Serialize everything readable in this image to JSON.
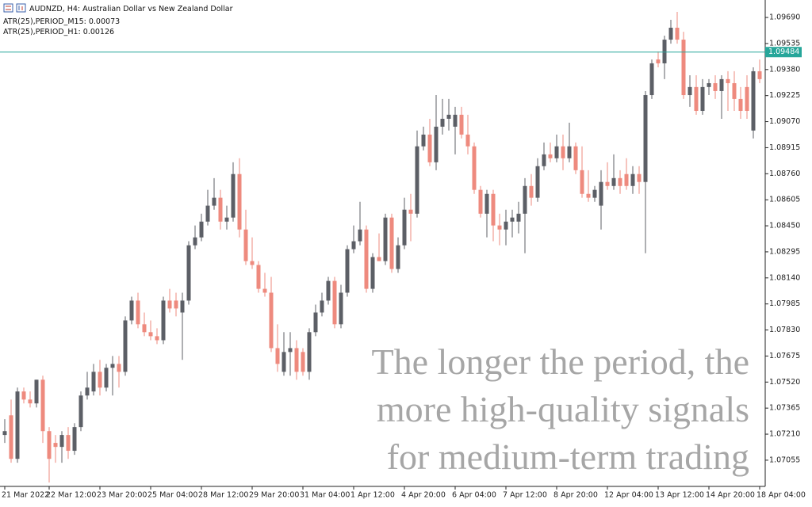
{
  "header": {
    "symbol": "AUDNZD, H4:  Australian Dollar vs New Zealand Dollar",
    "indicators": [
      "ATR(25),PERIOD_M15: 0.00073",
      "ATR(25),PERIOD_H1: 0.00126"
    ]
  },
  "overlay": {
    "lines": [
      "The longer the period, the",
      "more high-quality signals",
      "for medium-term trading"
    ]
  },
  "chart_data": {
    "type": "candlestick",
    "up_color": "#5c5f66",
    "down_color": "#ee8a7e",
    "grid": false,
    "ylim": [
      1.06899,
      1.09794
    ],
    "yticks": [
      {
        "value": 1.0969,
        "label": "1.09690"
      },
      1.09535,
      {
        "value": 1.0938,
        "label": "1.09380"
      },
      1.09225,
      {
        "value": 1.0907,
        "label": "1.09070"
      },
      1.08915,
      {
        "value": 1.0876,
        "label": "1.08760"
      },
      1.08605,
      {
        "value": 1.0845,
        "label": "1.08450"
      },
      1.08295,
      {
        "value": 1.0814,
        "label": "1.08140"
      },
      1.07985,
      {
        "value": 1.0783,
        "label": "1.07830"
      },
      1.07675,
      {
        "value": 1.0752,
        "label": "1.07520"
      },
      1.07365,
      {
        "value": 1.0721,
        "label": "1.07210"
      },
      1.07055
    ],
    "price_line": {
      "value": 1.09484,
      "color": "#26a69a"
    },
    "categories": [
      "21 Mar 2022",
      null,
      null,
      null,
      null,
      null,
      null,
      "22 Mar 12:00",
      null,
      null,
      null,
      null,
      null,
      null,
      null,
      "23 Mar 20:00",
      null,
      null,
      null,
      null,
      null,
      null,
      null,
      "25 Mar 04:00",
      null,
      null,
      null,
      null,
      null,
      null,
      null,
      "28 Mar 12:00",
      null,
      null,
      null,
      null,
      null,
      null,
      null,
      "29 Mar 20:00",
      null,
      null,
      null,
      null,
      null,
      null,
      null,
      "31 Mar 04:00",
      null,
      null,
      null,
      null,
      null,
      null,
      null,
      "1 Apr 12:00",
      null,
      null,
      null,
      null,
      null,
      null,
      null,
      "4 Apr 20:00",
      null,
      null,
      null,
      null,
      null,
      null,
      null,
      "6 Apr 04:00",
      null,
      null,
      null,
      null,
      null,
      null,
      null,
      "7 Apr 12:00",
      null,
      null,
      null,
      null,
      null,
      null,
      null,
      "8 Apr 20:00",
      null,
      null,
      null,
      null,
      null,
      null,
      null,
      "12 Apr 04:00",
      null,
      null,
      null,
      null,
      null,
      null,
      null,
      "13 Apr 12:00",
      null,
      null,
      null,
      null,
      null,
      null,
      null,
      "14 Apr 20:00",
      null,
      null,
      null,
      null,
      null,
      null,
      null,
      "18 Apr 04:00"
    ],
    "open": [
      1.07205,
      1.07322,
      1.07063,
      1.07464,
      1.07416,
      1.07393,
      1.07534,
      1.07228,
      1.07158,
      1.07134,
      1.07205,
      1.07111,
      1.07252,
      1.0744,
      1.07464,
      1.07581,
      1.07487,
      1.07605,
      1.07628,
      1.07581,
      1.07887,
      1.08005,
      1.07864,
      1.07817,
      1.07793,
      1.07769,
      1.08005,
      1.08005,
      1.07934,
      1.08005,
      1.08334,
      1.08381,
      1.08475,
      1.0857,
      1.08617,
      1.08475,
      1.08499,
      1.08758,
      1.08428,
      1.0824,
      1.08217,
      1.08075,
      1.08052,
      1.07722,
      1.07581,
      1.07699,
      1.07722,
      1.07699,
      1.07581,
      1.07817,
      1.07934,
      1.08005,
      1.08122,
      1.07864,
      1.08052,
      1.08311,
      1.08358,
      1.08428,
      1.08075,
      1.08264,
      1.0824,
      1.08499,
      1.08193,
      1.08334,
      1.08546,
      1.08522,
      1.08923,
      1.08993,
      1.08828,
      1.0904,
      1.09087,
      1.0904,
      1.09111,
      1.08993,
      1.08923,
      1.08664,
      1.08522,
      1.0864,
      1.08452,
      1.08428,
      1.08475,
      1.08475,
      1.08522,
      1.08687,
      1.08617,
      1.08805,
      1.08875,
      1.08852,
      1.08923,
      1.08852,
      1.08923,
      1.08781,
      1.0864,
      1.08617,
      1.0857,
      1.08711,
      1.08687,
      1.08734,
      1.08758,
      1.08687,
      1.08758,
      1.08711,
      1.09228,
      1.0944,
      1.09417,
      1.09558,
      1.09629,
      1.09558,
      1.09228,
      1.09276,
      1.09134,
      1.09276,
      1.09299,
      1.09252,
      1.09323,
      1.09299,
      1.09205,
      1.09276,
      1.09017,
      1.0937
    ],
    "high": [
      1.07299,
      1.07416,
      1.07487,
      1.07487,
      1.07464,
      1.07534,
      1.07558,
      1.07252,
      1.07205,
      1.07228,
      1.07252,
      1.07275,
      1.07464,
      1.07581,
      1.07628,
      1.07652,
      1.07628,
      1.07675,
      1.07675,
      1.07911,
      1.08028,
      1.08052,
      1.07934,
      1.07887,
      1.0784,
      1.08028,
      1.08075,
      1.08052,
      1.08052,
      1.08358,
      1.08452,
      1.08522,
      1.08664,
      1.08734,
      1.08664,
      1.0857,
      1.08828,
      1.08852,
      1.08546,
      1.08381,
      1.0824,
      1.0817,
      1.08146,
      1.07864,
      1.07817,
      1.07817,
      1.07769,
      1.07722,
      1.0784,
      1.07981,
      1.08052,
      1.08146,
      1.08146,
      1.08099,
      1.08334,
      1.08452,
      1.08593,
      1.08452,
      1.08287,
      1.08405,
      1.08522,
      1.08522,
      1.08381,
      1.08617,
      1.0864,
      1.09017,
      1.0904,
      1.09087,
      1.09228,
      1.09205,
      1.09205,
      1.09158,
      1.09158,
      1.09111,
      1.08946,
      1.08687,
      1.08664,
      1.08664,
      1.08522,
      1.08546,
      1.08546,
      1.08593,
      1.08734,
      1.08758,
      1.08852,
      1.08946,
      1.08946,
      1.08993,
      1.08993,
      1.09064,
      1.08946,
      1.08923,
      1.08781,
      1.08687,
      1.08781,
      1.08828,
      1.08875,
      1.08781,
      1.08852,
      1.08805,
      1.08805,
      1.09252,
      1.0944,
      1.09487,
      1.09582,
      1.09676,
      1.09723,
      1.09605,
      1.09346,
      1.09346,
      1.09323,
      1.09323,
      1.09346,
      1.09346,
      1.0937,
      1.0937,
      1.09276,
      1.09346,
      1.09393,
      1.0944
    ],
    "low": [
      1.07158,
      1.0704,
      1.0704,
      1.07393,
      1.07369,
      1.07369,
      1.07158,
      1.06922,
      1.0704,
      1.0704,
      1.07063,
      1.07087,
      1.07228,
      1.07416,
      1.0744,
      1.0744,
      1.07464,
      1.0744,
      1.07487,
      1.07558,
      1.07864,
      1.0784,
      1.07793,
      1.07769,
      1.07746,
      1.07746,
      1.07934,
      1.07911,
      1.07652,
      1.07981,
      1.08311,
      1.08358,
      1.08452,
      1.08546,
      1.08428,
      1.08428,
      1.08475,
      1.08381,
      1.08217,
      1.08193,
      1.08052,
      1.08028,
      1.07699,
      1.07581,
      1.07558,
      1.07558,
      1.07534,
      1.07558,
      1.07534,
      1.07793,
      1.07911,
      1.07981,
      1.0784,
      1.0784,
      1.08028,
      1.08287,
      1.08334,
      1.08052,
      1.08052,
      1.0824,
      1.08217,
      1.0817,
      1.0817,
      1.08311,
      1.08358,
      1.08499,
      1.08899,
      1.08805,
      1.08781,
      1.08993,
      1.09017,
      1.08875,
      1.0897,
      1.08875,
      1.0864,
      1.08499,
      1.08381,
      1.08358,
      1.08334,
      1.08334,
      1.08381,
      1.08405,
      1.08287,
      1.0857,
      1.08593,
      1.08781,
      1.08828,
      1.08828,
      1.08781,
      1.08828,
      1.08758,
      1.08617,
      1.08593,
      1.08593,
      1.08428,
      1.08664,
      1.08664,
      1.0864,
      1.08664,
      1.0864,
      1.0864,
      1.08287,
      1.09205,
      1.09393,
      1.09323,
      1.09534,
      1.09534,
      1.09205,
      1.09158,
      1.09111,
      1.09111,
      1.09228,
      1.09205,
      1.09087,
      1.09134,
      1.09134,
      1.09087,
      1.09087,
      1.0897,
      1.09299
    ],
    "close": [
      1.07228,
      1.07063,
      1.07464,
      1.07416,
      1.07393,
      1.07534,
      1.07228,
      1.07063,
      1.07134,
      1.07205,
      1.07111,
      1.07252,
      1.0744,
      1.07487,
      1.07581,
      1.07487,
      1.07605,
      1.07628,
      1.07581,
      1.07887,
      1.08005,
      1.07864,
      1.07817,
      1.07793,
      1.07769,
      1.08005,
      1.07958,
      1.07958,
      1.08005,
      1.08334,
      1.08381,
      1.08475,
      1.0857,
      1.08617,
      1.08475,
      1.08499,
      1.08758,
      1.08428,
      1.0824,
      1.08217,
      1.08075,
      1.08052,
      1.07722,
      1.07628,
      1.07699,
      1.07722,
      1.07581,
      1.07581,
      1.07817,
      1.07934,
      1.08005,
      1.08122,
      1.07864,
      1.08052,
      1.08311,
      1.08358,
      1.08428,
      1.08075,
      1.08264,
      1.0824,
      1.08499,
      1.08193,
      1.08334,
      1.08546,
      1.08522,
      1.08923,
      1.08993,
      1.08828,
      1.0904,
      1.09087,
      1.09111,
      1.09111,
      1.08993,
      1.08923,
      1.08664,
      1.08522,
      1.0864,
      1.08452,
      1.08428,
      1.08475,
      1.08499,
      1.08522,
      1.08687,
      1.08617,
      1.08805,
      1.08875,
      1.08852,
      1.08923,
      1.08852,
      1.08923,
      1.08781,
      1.0864,
      1.08617,
      1.08664,
      1.08711,
      1.08687,
      1.08734,
      1.08687,
      1.08687,
      1.08758,
      1.08711,
      1.09228,
      1.09417,
      1.09417,
      1.09558,
      1.09629,
      1.09558,
      1.09228,
      1.09276,
      1.09134,
      1.09276,
      1.09299,
      1.09252,
      1.09323,
      1.09299,
      1.09205,
      1.09134,
      1.09134,
      1.0937,
      1.09323
    ]
  }
}
